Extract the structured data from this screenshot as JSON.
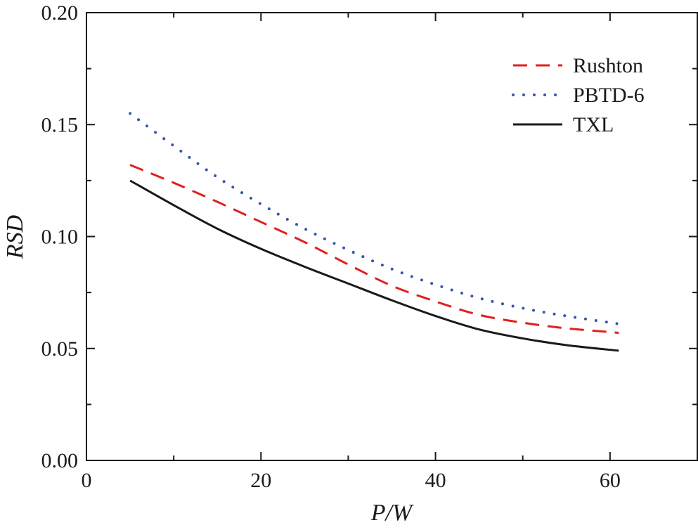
{
  "chart_data": {
    "type": "line",
    "title": "",
    "xlabel": "P/W",
    "ylabel": "RSD",
    "xlim": [
      0,
      70
    ],
    "ylim": [
      0,
      0.2
    ],
    "xticks": [
      0,
      20,
      40,
      60
    ],
    "xtick_labels": [
      "0",
      "20",
      "40",
      "60"
    ],
    "yticks": [
      0,
      0.05,
      0.1,
      0.15,
      0.2
    ],
    "ytick_labels": [
      "0.00",
      "0.05",
      "0.10",
      "0.15",
      "0.20"
    ],
    "minor_x_step": 10,
    "minor_y_step": 0.025,
    "grid": false,
    "legend_position": "top-right",
    "series": [
      {
        "name": "Rushton",
        "color": "#e02020",
        "style": "dashed",
        "x": [
          5,
          10,
          15,
          20,
          25,
          30,
          35,
          40,
          45,
          50,
          55,
          61
        ],
        "y": [
          0.132,
          0.124,
          0.1155,
          0.1065,
          0.0975,
          0.0875,
          0.078,
          0.071,
          0.065,
          0.0615,
          0.059,
          0.057
        ]
      },
      {
        "name": "PBTD-6",
        "color": "#3355aa",
        "style": "dotted",
        "x": [
          5,
          10,
          15,
          20,
          25,
          30,
          35,
          40,
          45,
          50,
          55,
          61
        ],
        "y": [
          0.155,
          0.1405,
          0.1265,
          0.1145,
          0.1035,
          0.094,
          0.0855,
          0.0785,
          0.0725,
          0.068,
          0.0645,
          0.061
        ]
      },
      {
        "name": "TXL",
        "color": "#1a1a1a",
        "style": "solid",
        "x": [
          5,
          10,
          15,
          20,
          25,
          30,
          35,
          40,
          45,
          50,
          55,
          61
        ],
        "y": [
          0.125,
          0.114,
          0.1035,
          0.0945,
          0.0865,
          0.079,
          0.0715,
          0.0645,
          0.0585,
          0.0545,
          0.0515,
          0.049
        ]
      }
    ]
  }
}
